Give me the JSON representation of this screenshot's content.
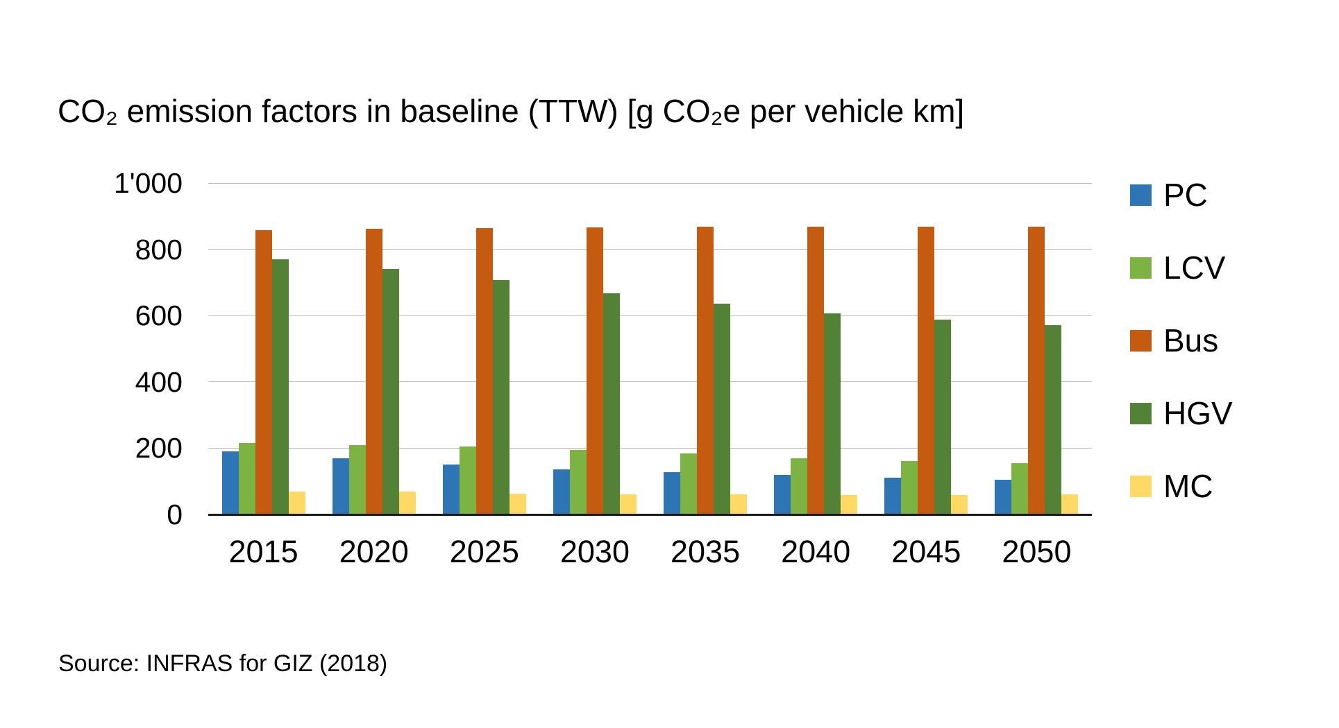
{
  "chart": {
    "title": "CO₂ emission factors in baseline (TTW) [g CO₂e per vehicle km]"
  },
  "source": "Source: INFRAS for GIZ (2018)",
  "colors": {
    "pc": "#2E75B6",
    "lcv": "#7CB342",
    "bus": "#C55A11",
    "hgv": "#538135",
    "mc": "#FFD966",
    "gridline": "#BDBDBD",
    "axis": "#1A1A1A"
  },
  "chart_data": {
    "type": "bar",
    "title": "CO₂ emission factors in baseline (TTW) [g CO₂e per vehicle km]",
    "xlabel": "",
    "ylabel": "g CO₂e per vehicle km",
    "categories": [
      "2015",
      "2020",
      "2025",
      "2030",
      "2035",
      "2040",
      "2045",
      "2050"
    ],
    "series": [
      {
        "name": "PC",
        "color": "#2E75B6",
        "values": [
          190,
          170,
          150,
          136,
          128,
          119,
          110,
          105
        ]
      },
      {
        "name": "LCV",
        "color": "#7CB342",
        "values": [
          216,
          210,
          204,
          194,
          185,
          170,
          161,
          154
        ]
      },
      {
        "name": "Bus",
        "color": "#C55A11",
        "values": [
          858,
          862,
          864,
          867,
          868,
          868,
          868,
          868
        ]
      },
      {
        "name": "HGV",
        "color": "#538135",
        "values": [
          770,
          741,
          708,
          668,
          636,
          607,
          588,
          572
        ]
      },
      {
        "name": "MC",
        "color": "#FFD966",
        "values": [
          68,
          68,
          63,
          61,
          60,
          59,
          58,
          61
        ]
      }
    ],
    "ylim": [
      0,
      1000
    ],
    "yticks": [
      {
        "value": 1000,
        "label": "1'000"
      },
      {
        "value": 800,
        "label": "800"
      },
      {
        "value": 600,
        "label": "600"
      },
      {
        "value": 400,
        "label": "400"
      },
      {
        "value": 200,
        "label": "200"
      },
      {
        "value": 0,
        "label": "0"
      }
    ],
    "grid": true,
    "legend_position": "right"
  }
}
